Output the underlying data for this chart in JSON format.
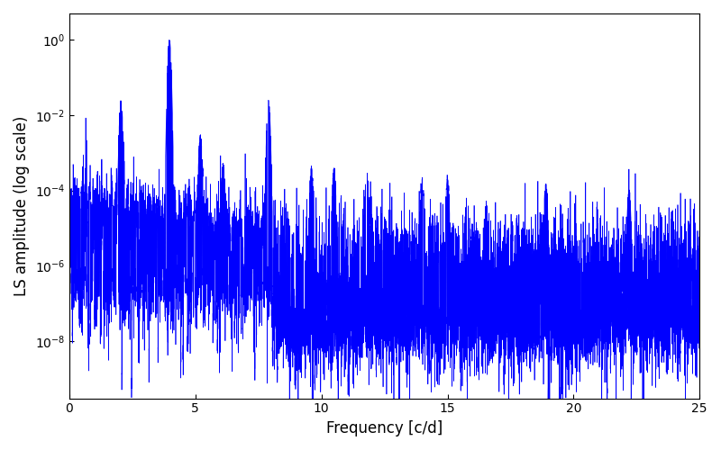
{
  "xlabel": "Frequency [c/d]",
  "ylabel": "LS amplitude (log scale)",
  "xmin": 0,
  "xmax": 25,
  "ymin": 3e-10,
  "ymax": 5,
  "line_color": "#0000ff",
  "line_width": 0.5,
  "background_color": "#ffffff",
  "fig_width": 8.0,
  "fig_height": 5.0,
  "dpi": 100,
  "seed": 12345,
  "n_points": 15000,
  "main_peak_freq": 3.97,
  "main_peak_amp": 1.0,
  "peaks": [
    {
      "freq": 2.05,
      "amp": 0.025,
      "sigma": 0.04
    },
    {
      "freq": 3.97,
      "amp": 1.0,
      "sigma": 0.04
    },
    {
      "freq": 7.9,
      "amp": 0.025,
      "sigma": 0.04
    },
    {
      "freq": 5.2,
      "amp": 0.003,
      "sigma": 0.04
    },
    {
      "freq": 6.1,
      "amp": 0.0005,
      "sigma": 0.04
    },
    {
      "freq": 9.6,
      "amp": 0.0004,
      "sigma": 0.04
    },
    {
      "freq": 10.5,
      "amp": 0.0004,
      "sigma": 0.04
    },
    {
      "freq": 11.8,
      "amp": 0.0003,
      "sigma": 0.04
    },
    {
      "freq": 14.0,
      "amp": 0.0002,
      "sigma": 0.04
    },
    {
      "freq": 15.0,
      "amp": 0.0002,
      "sigma": 0.04
    },
    {
      "freq": 18.9,
      "amp": 0.00015,
      "sigma": 0.04
    },
    {
      "freq": 22.2,
      "amp": 0.0001,
      "sigma": 0.04
    }
  ]
}
